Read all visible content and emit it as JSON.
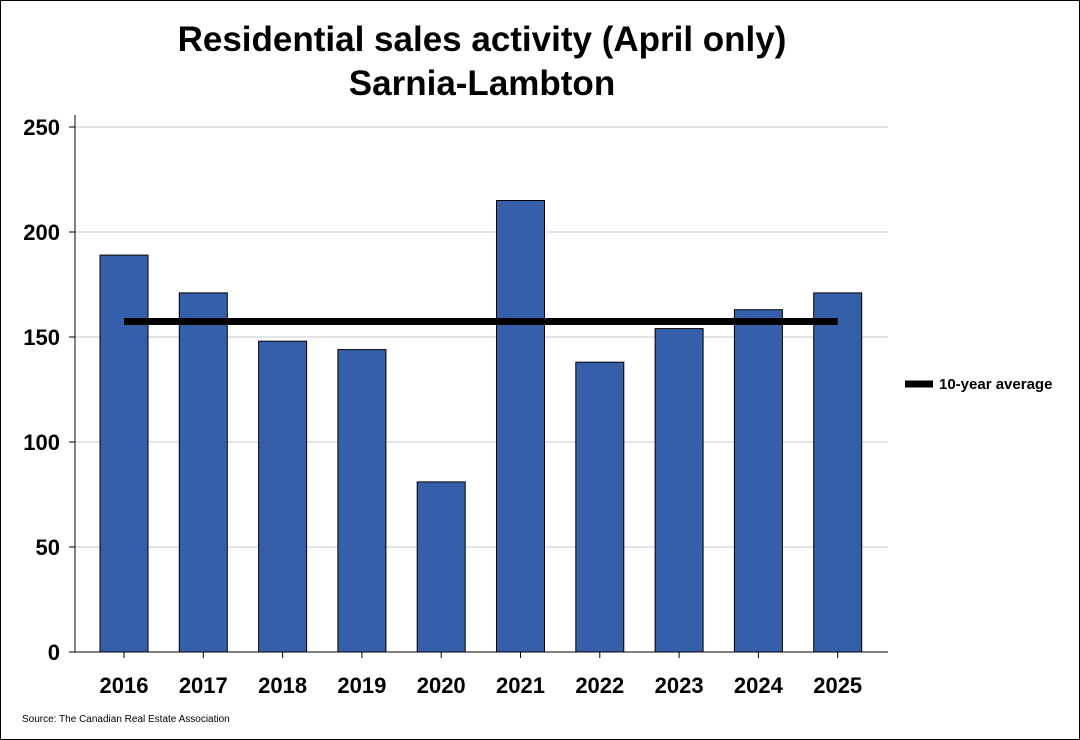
{
  "chart_data": {
    "type": "bar",
    "title": [
      "Residential sales activity (April only)",
      "Sarnia-Lambton"
    ],
    "categories": [
      "2016",
      "2017",
      "2018",
      "2019",
      "2020",
      "2021",
      "2022",
      "2023",
      "2024",
      "2025"
    ],
    "values": [
      189,
      171,
      148,
      144,
      81,
      215,
      138,
      154,
      163,
      171
    ],
    "average": {
      "name": "10-year average",
      "value": 157.4
    },
    "ylim": [
      0,
      250
    ],
    "yticks": [
      "0",
      "50",
      "100",
      "150",
      "200",
      "250"
    ],
    "grid": true,
    "legend_position": "right",
    "xlabel": "",
    "ylabel": "",
    "bar_color": "#355fab",
    "average_color": "#000000",
    "source": "Source: The Canadian Real Estate Association"
  }
}
